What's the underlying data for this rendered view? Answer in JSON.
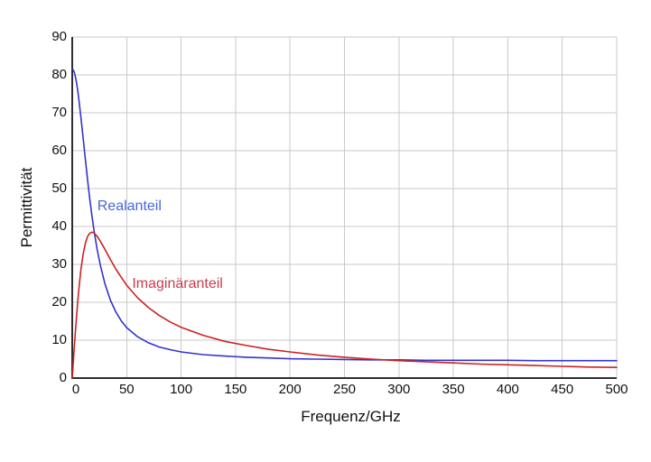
{
  "chart_data": {
    "type": "line",
    "title": "",
    "xlabel": "Frequenz/GHz",
    "ylabel": "Permittivität",
    "xlim": [
      0,
      500
    ],
    "ylim": [
      0,
      90
    ],
    "x_ticks": [
      0,
      50,
      100,
      150,
      200,
      250,
      300,
      350,
      400,
      450,
      500
    ],
    "y_ticks": [
      0,
      10,
      20,
      30,
      40,
      50,
      60,
      70,
      80,
      90
    ],
    "grid": true,
    "grid_color": "#c9c9c9",
    "axis_color": "#2e2e2e",
    "background": "#ffffff",
    "legend_position": "inline-annotations",
    "series": [
      {
        "name": "Realanteil",
        "color": "#3333cc",
        "label_color": "#4466dd",
        "label_anchor": {
          "x": 23,
          "y": 47.5
        },
        "x": [
          0,
          1,
          2,
          3,
          4,
          5,
          6,
          8,
          10,
          12,
          14,
          16,
          18,
          20,
          23,
          26,
          30,
          35,
          40,
          45,
          50,
          60,
          70,
          80,
          90,
          100,
          120,
          140,
          160,
          180,
          200,
          225,
          250,
          275,
          300,
          325,
          350,
          375,
          400,
          425,
          450,
          475,
          500
        ],
        "y": [
          81.5,
          81.3,
          80.6,
          79.4,
          77.9,
          76.0,
          73.8,
          68.8,
          63.3,
          57.8,
          52.5,
          47.5,
          43.0,
          39.0,
          33.8,
          29.5,
          24.9,
          20.6,
          17.5,
          15.1,
          13.3,
          10.9,
          9.3,
          8.2,
          7.5,
          6.9,
          6.2,
          5.8,
          5.5,
          5.3,
          5.1,
          5.0,
          4.9,
          4.8,
          4.8,
          4.7,
          4.7,
          4.7,
          4.7,
          4.6,
          4.6,
          4.6,
          4.6
        ]
      },
      {
        "name": "Imaginäranteil",
        "color": "#cc2222",
        "label_color": "#cc3b4a",
        "label_anchor": {
          "x": 55,
          "y": 27
        },
        "x": [
          0,
          1,
          2,
          3,
          4,
          5,
          6,
          8,
          10,
          12,
          14,
          16,
          18,
          20,
          23,
          26,
          30,
          35,
          40,
          45,
          50,
          60,
          70,
          80,
          90,
          100,
          120,
          140,
          160,
          180,
          200,
          225,
          250,
          275,
          300,
          325,
          350,
          375,
          400,
          425,
          450,
          475,
          500
        ],
        "y": [
          0,
          4.3,
          8.5,
          12.5,
          16.3,
          19.9,
          23.1,
          28.6,
          32.7,
          35.5,
          37.3,
          38.2,
          38.5,
          38.3,
          37.4,
          36.0,
          34.0,
          31.3,
          28.8,
          26.6,
          24.5,
          21.2,
          18.6,
          16.5,
          14.8,
          13.4,
          11.3,
          9.7,
          8.6,
          7.6,
          6.9,
          6.1,
          5.5,
          5.0,
          4.6,
          4.3,
          4.0,
          3.7,
          3.5,
          3.3,
          3.1,
          2.9,
          2.8
        ]
      }
    ]
  }
}
